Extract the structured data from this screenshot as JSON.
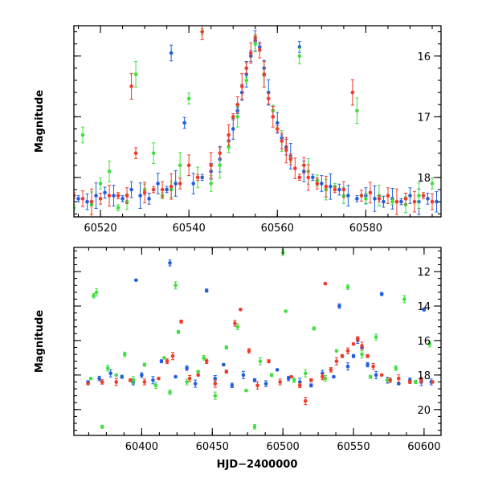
{
  "colors": {
    "blue": "#1f5fe0",
    "green": "#3fe040",
    "red": "#f03a2a"
  },
  "chart_data": [
    {
      "type": "scatter",
      "title": "",
      "xlabel": "",
      "ylabel": "Magnitude",
      "xlim": [
        60514,
        60597
      ],
      "ylim": [
        18.65,
        15.5
      ],
      "y_inverted": true,
      "xticks": [
        60520,
        60540,
        60560,
        60580
      ],
      "yticks": [
        16,
        17,
        18
      ],
      "error_bars": true,
      "series": [
        {
          "color": "blue",
          "points": [
            [
              60515,
              18.35
            ],
            [
              60517,
              18.4
            ],
            [
              60519,
              18.3
            ],
            [
              60521,
              18.25
            ],
            [
              60523,
              18.3
            ],
            [
              60525,
              18.35
            ],
            [
              60527,
              18.2
            ],
            [
              60529,
              18.3
            ],
            [
              60531,
              18.35
            ],
            [
              60533,
              18.1
            ],
            [
              60535,
              18.2
            ],
            [
              60536,
              15.95
            ],
            [
              60537,
              18.1
            ],
            [
              60539,
              17.1
            ],
            [
              60541,
              18.1
            ],
            [
              60543,
              18.0
            ],
            [
              60545,
              17.9
            ],
            [
              60547,
              17.7
            ],
            [
              60549,
              17.4
            ],
            [
              60550,
              17.2
            ],
            [
              60551,
              16.9
            ],
            [
              60552,
              16.6
            ],
            [
              60553,
              16.3
            ],
            [
              60554,
              16.0
            ],
            [
              60555,
              15.75
            ],
            [
              60556,
              15.85
            ],
            [
              60557,
              16.2
            ],
            [
              60558,
              16.6
            ],
            [
              60559,
              16.9
            ],
            [
              60560,
              17.1
            ],
            [
              60561,
              17.35
            ],
            [
              60562,
              17.5
            ],
            [
              60563,
              17.65
            ],
            [
              60565,
              15.85
            ],
            [
              60566,
              17.9
            ],
            [
              60568,
              18.0
            ],
            [
              60570,
              18.1
            ],
            [
              60572,
              18.15
            ],
            [
              60574,
              18.2
            ],
            [
              60576,
              18.3
            ],
            [
              60578,
              18.35
            ],
            [
              60580,
              18.3
            ],
            [
              60582,
              18.35
            ],
            [
              60584,
              18.4
            ],
            [
              60586,
              18.35
            ],
            [
              60588,
              18.4
            ],
            [
              60590,
              18.3
            ],
            [
              60592,
              18.4
            ],
            [
              60594,
              18.35
            ],
            [
              60596,
              18.4
            ]
          ]
        },
        {
          "color": "green",
          "points": [
            [
              60514,
              18.5
            ],
            [
              60516,
              17.3
            ],
            [
              60518,
              18.45
            ],
            [
              60520,
              18.1
            ],
            [
              60522,
              17.9
            ],
            [
              60524,
              18.5
            ],
            [
              60526,
              18.4
            ],
            [
              60528,
              16.3
            ],
            [
              60530,
              18.2
            ],
            [
              60532,
              17.6
            ],
            [
              60534,
              18.3
            ],
            [
              60536,
              18.2
            ],
            [
              60538,
              17.8
            ],
            [
              60540,
              16.7
            ],
            [
              60542,
              18.0
            ],
            [
              60543,
              15.6
            ],
            [
              60545,
              18.1
            ],
            [
              60547,
              17.8
            ],
            [
              60549,
              17.5
            ],
            [
              60551,
              17.0
            ],
            [
              60553,
              16.4
            ],
            [
              60555,
              15.8
            ],
            [
              60557,
              16.3
            ],
            [
              60559,
              16.9
            ],
            [
              60561,
              17.4
            ],
            [
              60563,
              17.7
            ],
            [
              60565,
              16.0
            ],
            [
              60567,
              17.9
            ],
            [
              60569,
              18.05
            ],
            [
              60571,
              18.2
            ],
            [
              60573,
              18.15
            ],
            [
              60575,
              18.3
            ],
            [
              60578,
              16.9
            ],
            [
              60580,
              18.35
            ],
            [
              60583,
              18.3
            ],
            [
              60586,
              18.4
            ],
            [
              60589,
              18.45
            ],
            [
              60592,
              18.3
            ],
            [
              60595,
              18.1
            ]
          ]
        },
        {
          "color": "red",
          "points": [
            [
              60514,
              18.3
            ],
            [
              60516,
              18.35
            ],
            [
              60518,
              18.4
            ],
            [
              60520,
              18.35
            ],
            [
              60522,
              18.3
            ],
            [
              60524,
              18.3
            ],
            [
              60526,
              18.3
            ],
            [
              60527,
              16.5
            ],
            [
              60528,
              17.6
            ],
            [
              60530,
              18.25
            ],
            [
              60532,
              18.2
            ],
            [
              60534,
              18.2
            ],
            [
              60536,
              18.15
            ],
            [
              60538,
              18.1
            ],
            [
              60540,
              17.8
            ],
            [
              60542,
              18.0
            ],
            [
              60543,
              15.6
            ],
            [
              60545,
              17.8
            ],
            [
              60547,
              17.6
            ],
            [
              60549,
              17.3
            ],
            [
              60550,
              17.0
            ],
            [
              60551,
              16.8
            ],
            [
              60552,
              16.5
            ],
            [
              60553,
              16.2
            ],
            [
              60554,
              15.95
            ],
            [
              60555,
              15.7
            ],
            [
              60556,
              15.9
            ],
            [
              60557,
              16.3
            ],
            [
              60558,
              16.7
            ],
            [
              60559,
              17.0
            ],
            [
              60560,
              17.2
            ],
            [
              60561,
              17.4
            ],
            [
              60562,
              17.55
            ],
            [
              60563,
              17.7
            ],
            [
              60564,
              17.85
            ],
            [
              60565,
              18.0
            ],
            [
              60566,
              17.8
            ],
            [
              60567,
              18.0
            ],
            [
              60569,
              18.1
            ],
            [
              60571,
              18.15
            ],
            [
              60573,
              18.2
            ],
            [
              60575,
              18.2
            ],
            [
              60577,
              16.6
            ],
            [
              60579,
              18.3
            ],
            [
              60581,
              18.25
            ],
            [
              60583,
              18.35
            ],
            [
              60585,
              18.3
            ],
            [
              60587,
              18.4
            ],
            [
              60589,
              18.35
            ],
            [
              60591,
              18.4
            ],
            [
              60593,
              18.3
            ],
            [
              60595,
              18.4
            ]
          ]
        }
      ]
    },
    {
      "type": "scatter",
      "title": "",
      "xlabel": "HJD−2400000",
      "ylabel": "Magnitude",
      "xlim": [
        60352,
        60612
      ],
      "ylim": [
        21.5,
        10.6
      ],
      "y_inverted": true,
      "xticks": [
        60400,
        60450,
        60500,
        60550,
        60600
      ],
      "yticks": [
        12,
        14,
        16,
        18,
        20
      ],
      "error_bars": true,
      "series": [
        {
          "color": "blue",
          "points": [
            [
              60362,
              18.4
            ],
            [
              60370,
              18.2
            ],
            [
              60378,
              17.9
            ],
            [
              60386,
              18.1
            ],
            [
              60394,
              18.4
            ],
            [
              60396,
              12.5
            ],
            [
              60400,
              18.0
            ],
            [
              60408,
              18.3
            ],
            [
              60414,
              17.2
            ],
            [
              60420,
              11.5
            ],
            [
              60424,
              18.1
            ],
            [
              60432,
              17.6
            ],
            [
              60438,
              18.5
            ],
            [
              60446,
              13.1
            ],
            [
              60452,
              18.2
            ],
            [
              60458,
              17.4
            ],
            [
              60464,
              18.6
            ],
            [
              60472,
              18.0
            ],
            [
              60480,
              18.3
            ],
            [
              60488,
              18.5
            ],
            [
              60496,
              17.7
            ],
            [
              60504,
              18.2
            ],
            [
              60512,
              18.4
            ],
            [
              60520,
              18.6
            ],
            [
              60528,
              17.9
            ],
            [
              60536,
              18.1
            ],
            [
              60540,
              14.0
            ],
            [
              60546,
              17.5
            ],
            [
              60550,
              16.9
            ],
            [
              60553,
              16.0
            ],
            [
              60556,
              16.4
            ],
            [
              60560,
              17.4
            ],
            [
              60566,
              18.0
            ],
            [
              60570,
              13.3
            ],
            [
              60574,
              18.3
            ],
            [
              60582,
              18.5
            ],
            [
              60590,
              18.3
            ],
            [
              60598,
              18.4
            ],
            [
              60600,
              14.2
            ],
            [
              60605,
              18.4
            ]
          ]
        },
        {
          "color": "green",
          "points": [
            [
              60364,
              18.2
            ],
            [
              60366,
              13.4
            ],
            [
              60368,
              13.2
            ],
            [
              60372,
              21.0
            ],
            [
              60376,
              17.6
            ],
            [
              60382,
              18.0
            ],
            [
              60388,
              16.8
            ],
            [
              60394,
              18.3
            ],
            [
              60402,
              17.4
            ],
            [
              60410,
              18.6
            ],
            [
              60416,
              17.0
            ],
            [
              60420,
              19.0
            ],
            [
              60424,
              12.8
            ],
            [
              60426,
              15.5
            ],
            [
              60432,
              18.4
            ],
            [
              60440,
              17.8
            ],
            [
              60444,
              17.0
            ],
            [
              60452,
              19.2
            ],
            [
              60460,
              16.4
            ],
            [
              60468,
              15.2
            ],
            [
              60474,
              18.9
            ],
            [
              60480,
              21.0
            ],
            [
              60484,
              17.2
            ],
            [
              60492,
              18.0
            ],
            [
              60500,
              10.9
            ],
            [
              60502,
              14.3
            ],
            [
              60508,
              18.3
            ],
            [
              60516,
              17.9
            ],
            [
              60522,
              15.3
            ],
            [
              60530,
              18.2
            ],
            [
              60538,
              16.6
            ],
            [
              60546,
              12.9
            ],
            [
              60556,
              16.8
            ],
            [
              60562,
              18.1
            ],
            [
              60566,
              15.8
            ],
            [
              60574,
              18.3
            ],
            [
              60580,
              17.6
            ],
            [
              60586,
              13.6
            ],
            [
              60594,
              18.4
            ],
            [
              60604,
              16.2
            ]
          ]
        },
        {
          "color": "red",
          "points": [
            [
              60362,
              18.5
            ],
            [
              60372,
              18.4
            ],
            [
              60382,
              18.4
            ],
            [
              60392,
              18.3
            ],
            [
              60402,
              18.4
            ],
            [
              60412,
              18.2
            ],
            [
              60418,
              17.2
            ],
            [
              60422,
              16.9
            ],
            [
              60428,
              14.9
            ],
            [
              60434,
              18.2
            ],
            [
              60440,
              18.0
            ],
            [
              60446,
              17.2
            ],
            [
              60452,
              18.5
            ],
            [
              60460,
              17.8
            ],
            [
              60466,
              15.0
            ],
            [
              60470,
              14.2
            ],
            [
              60476,
              16.6
            ],
            [
              60482,
              18.6
            ],
            [
              60490,
              17.2
            ],
            [
              60498,
              18.4
            ],
            [
              60506,
              18.1
            ],
            [
              60512,
              18.6
            ],
            [
              60516,
              19.5
            ],
            [
              60520,
              18.3
            ],
            [
              60528,
              18.1
            ],
            [
              60530,
              12.7
            ],
            [
              60534,
              17.7
            ],
            [
              60538,
              17.2
            ],
            [
              60542,
              16.9
            ],
            [
              60546,
              16.6
            ],
            [
              60550,
              16.2
            ],
            [
              60553,
              15.9
            ],
            [
              60556,
              16.3
            ],
            [
              60560,
              16.9
            ],
            [
              60564,
              17.5
            ],
            [
              60570,
              18.0
            ],
            [
              60576,
              18.3
            ],
            [
              60582,
              18.2
            ],
            [
              60590,
              18.4
            ],
            [
              60598,
              18.3
            ],
            [
              60606,
              18.4
            ]
          ]
        }
      ]
    }
  ]
}
